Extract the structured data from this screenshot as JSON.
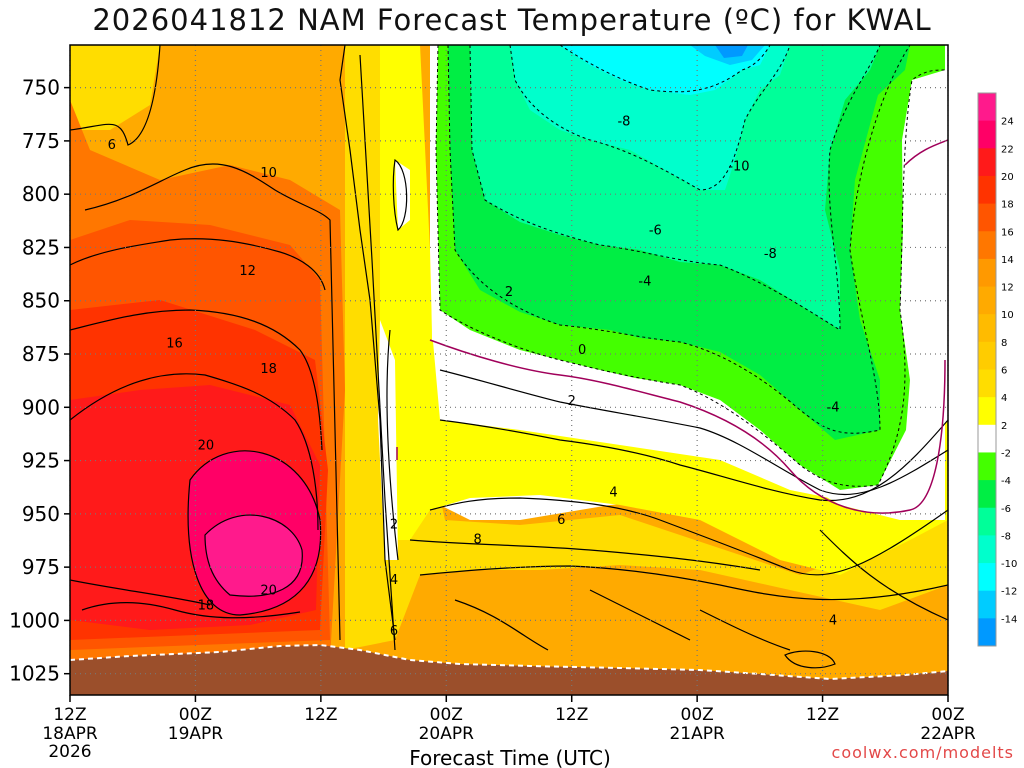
{
  "title": "2026041812 NAM Forecast Temperature (ºC) for KWAL",
  "credit": "coolwx.com/modelts",
  "chart_data": {
    "type": "contour",
    "title": "2026041812 NAM Forecast Temperature (ºC) for KWAL",
    "xlabel": "Forecast Time (UTC)",
    "ylabel": "",
    "x_ticks": [
      {
        "hour": 0,
        "label": "12Z",
        "date": "18APR",
        "year": "2026"
      },
      {
        "hour": 12,
        "label": "00Z",
        "date": "19APR",
        "year": ""
      },
      {
        "hour": 24,
        "label": "12Z",
        "date": "",
        "year": ""
      },
      {
        "hour": 36,
        "label": "00Z",
        "date": "20APR",
        "year": ""
      },
      {
        "hour": 48,
        "label": "12Z",
        "date": "",
        "year": ""
      },
      {
        "hour": 60,
        "label": "00Z",
        "date": "21APR",
        "year": ""
      },
      {
        "hour": 72,
        "label": "12Z",
        "date": "",
        "year": ""
      },
      {
        "hour": 84,
        "label": "00Z",
        "date": "22APR",
        "year": ""
      }
    ],
    "xlim": [
      0,
      84
    ],
    "y_ticks": [
      750,
      775,
      800,
      825,
      850,
      875,
      900,
      925,
      950,
      975,
      1000,
      1025
    ],
    "ylim": [
      730,
      1035
    ],
    "colorbar": {
      "labels": [
        "24",
        "22",
        "20",
        "18",
        "16",
        "14",
        "12",
        "10",
        "8",
        "6",
        "4",
        "2",
        "-2",
        "-4",
        "-6",
        "-8",
        "-10",
        "-12",
        "-14"
      ],
      "colors": [
        "#ff1a8c",
        "#ff0066",
        "#ff1a1a",
        "#ff3300",
        "#ff5500",
        "#ff7700",
        "#ff9900",
        "#ffaa00",
        "#ffbb00",
        "#ffcc00",
        "#ffdd00",
        "#ffff00",
        "#ffffff",
        "#44ff00",
        "#00ee44",
        "#00ff99",
        "#00ffcc",
        "#00ffff",
        "#00ccff",
        "#0099ff"
      ]
    },
    "contour_labels": [
      {
        "text": "6",
        "hour": 4,
        "p": 777
      },
      {
        "text": "10",
        "hour": 19,
        "p": 790
      },
      {
        "text": "12",
        "hour": 17,
        "p": 836
      },
      {
        "text": "16",
        "hour": 10,
        "p": 870
      },
      {
        "text": "18",
        "hour": 19,
        "p": 882
      },
      {
        "text": "20",
        "hour": 13,
        "p": 918
      },
      {
        "text": "20",
        "hour": 19,
        "p": 986
      },
      {
        "text": "18",
        "hour": 13,
        "p": 993
      },
      {
        "text": "2",
        "hour": 31,
        "p": 955
      },
      {
        "text": "4",
        "hour": 31,
        "p": 981
      },
      {
        "text": "6",
        "hour": 31,
        "p": 1005
      },
      {
        "text": "8",
        "hour": 39,
        "p": 962
      },
      {
        "text": "6",
        "hour": 47,
        "p": 953
      },
      {
        "text": "4",
        "hour": 52,
        "p": 940
      },
      {
        "text": "2",
        "hour": 48,
        "p": 897
      },
      {
        "text": "0",
        "hour": 49,
        "p": 873
      },
      {
        "text": "2",
        "hour": 42,
        "p": 846
      },
      {
        "text": "-4",
        "hour": 55,
        "p": 841
      },
      {
        "text": "-6",
        "hour": 56,
        "p": 817
      },
      {
        "text": "-8",
        "hour": 53,
        "p": 766
      },
      {
        "text": "-10",
        "hour": 64,
        "p": 787
      },
      {
        "text": "-8",
        "hour": 67,
        "p": 828
      },
      {
        "text": "-4",
        "hour": 73,
        "p": 900
      },
      {
        "text": "4",
        "hour": 73,
        "p": 1000
      }
    ]
  }
}
